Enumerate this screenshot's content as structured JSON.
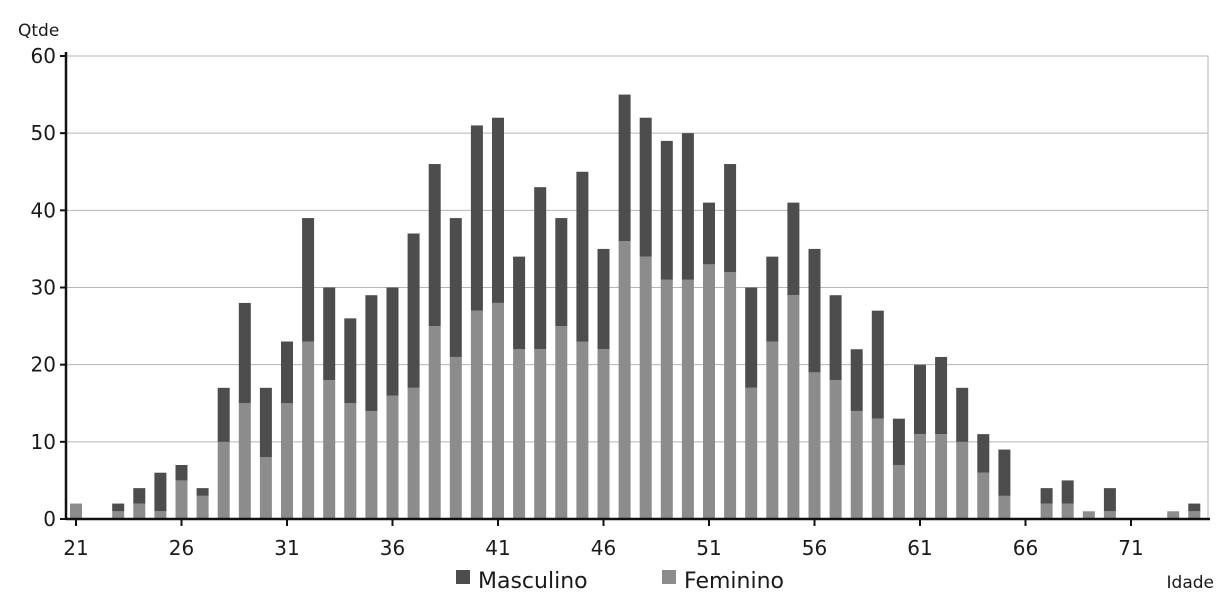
{
  "chart_data": {
    "type": "bar",
    "stacked": true,
    "ylabel": "Qtde",
    "xlabel": "Idade",
    "ylim": [
      0,
      60
    ],
    "yticks": [
      0,
      10,
      20,
      30,
      40,
      50,
      60
    ],
    "xticks": [
      21,
      26,
      31,
      36,
      41,
      46,
      51,
      56,
      61,
      66,
      71
    ],
    "x": [
      21,
      22,
      23,
      24,
      25,
      26,
      27,
      28,
      29,
      30,
      31,
      32,
      33,
      34,
      35,
      36,
      37,
      38,
      39,
      40,
      41,
      42,
      43,
      44,
      45,
      46,
      47,
      48,
      49,
      50,
      51,
      52,
      53,
      54,
      55,
      56,
      57,
      58,
      59,
      60,
      61,
      62,
      63,
      64,
      65,
      66,
      67,
      68,
      69,
      70,
      71,
      72,
      73,
      74
    ],
    "series": [
      {
        "name": "Feminino",
        "color": "#8c8c8c",
        "values": [
          2,
          0,
          1,
          2,
          1,
          5,
          3,
          10,
          15,
          8,
          15,
          23,
          18,
          15,
          14,
          16,
          17,
          25,
          21,
          27,
          28,
          22,
          22,
          25,
          23,
          22,
          36,
          34,
          31,
          31,
          33,
          32,
          17,
          23,
          29,
          19,
          18,
          14,
          13,
          7,
          11,
          11,
          10,
          6,
          3,
          0,
          2,
          2,
          1,
          1,
          0,
          0,
          1,
          1
        ]
      },
      {
        "name": "Masculino",
        "color": "#4d4d4d",
        "values": [
          0,
          0,
          1,
          2,
          5,
          2,
          1,
          7,
          13,
          9,
          8,
          16,
          12,
          11,
          15,
          14,
          20,
          21,
          18,
          24,
          24,
          12,
          21,
          14,
          22,
          13,
          19,
          18,
          18,
          19,
          8,
          14,
          13,
          11,
          12,
          16,
          11,
          8,
          14,
          6,
          9,
          10,
          7,
          5,
          6,
          0,
          2,
          3,
          0,
          3,
          0,
          0,
          0,
          1
        ]
      }
    ],
    "legend": {
      "placement": "bottom",
      "items": [
        "Masculino",
        "Feminino"
      ]
    },
    "grid": true
  }
}
